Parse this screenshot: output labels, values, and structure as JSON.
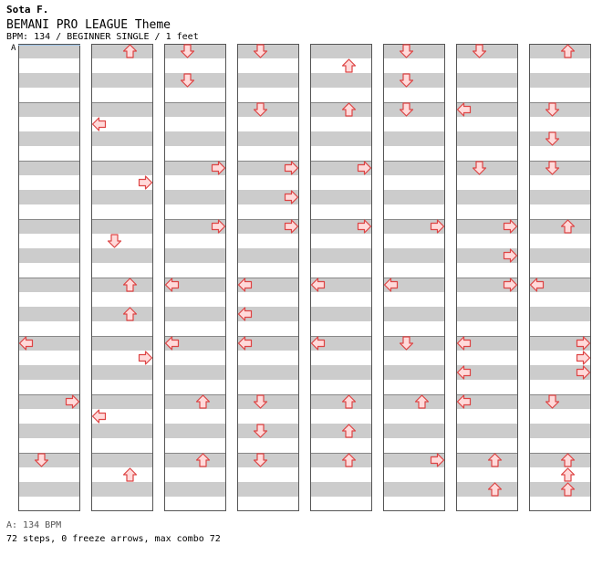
{
  "header": {
    "artist": "Sota F.",
    "title": "BEMANI PRO LEAGUE Theme",
    "info": "BPM: 134 / BEGINNER SINGLE / 1 feet"
  },
  "bpm_marker": "A",
  "footer": {
    "bpm_legend": "A: 134 BPM",
    "summary": "72 steps, 0 freeze arrows, max combo 72"
  },
  "colors": {
    "stripe": "#cccccc",
    "column_border": "#555555",
    "arrow_fill": "#ffdada",
    "arrow_stroke": "#dd4444"
  },
  "chart": {
    "columns": 8,
    "measures_per_column": 8,
    "beats_per_measure": 4,
    "lanes": [
      "left",
      "down",
      "up",
      "right"
    ],
    "notes": [
      {
        "col": 0,
        "measure": 5,
        "beat": 0,
        "lane": "left"
      },
      {
        "col": 0,
        "measure": 6,
        "beat": 0,
        "lane": "right"
      },
      {
        "col": 0,
        "measure": 7,
        "beat": 0,
        "lane": "down"
      },
      {
        "col": 1,
        "measure": 0,
        "beat": 0,
        "lane": "up"
      },
      {
        "col": 1,
        "measure": 1,
        "beat": 1,
        "lane": "left"
      },
      {
        "col": 1,
        "measure": 2,
        "beat": 1,
        "lane": "right"
      },
      {
        "col": 1,
        "measure": 3,
        "beat": 1,
        "lane": "down"
      },
      {
        "col": 1,
        "measure": 4,
        "beat": 0,
        "lane": "up"
      },
      {
        "col": 1,
        "measure": 4,
        "beat": 2,
        "lane": "up"
      },
      {
        "col": 1,
        "measure": 5,
        "beat": 1,
        "lane": "right"
      },
      {
        "col": 1,
        "measure": 6,
        "beat": 1,
        "lane": "left"
      },
      {
        "col": 1,
        "measure": 7,
        "beat": 1,
        "lane": "up"
      },
      {
        "col": 2,
        "measure": 0,
        "beat": 0,
        "lane": "down"
      },
      {
        "col": 2,
        "measure": 0,
        "beat": 2,
        "lane": "down"
      },
      {
        "col": 2,
        "measure": 2,
        "beat": 0,
        "lane": "right"
      },
      {
        "col": 2,
        "measure": 3,
        "beat": 0,
        "lane": "right"
      },
      {
        "col": 2,
        "measure": 4,
        "beat": 0,
        "lane": "left"
      },
      {
        "col": 2,
        "measure": 5,
        "beat": 0,
        "lane": "left"
      },
      {
        "col": 2,
        "measure": 6,
        "beat": 0,
        "lane": "up"
      },
      {
        "col": 2,
        "measure": 7,
        "beat": 0,
        "lane": "up"
      },
      {
        "col": 3,
        "measure": 0,
        "beat": 0,
        "lane": "down"
      },
      {
        "col": 3,
        "measure": 1,
        "beat": 0,
        "lane": "down"
      },
      {
        "col": 3,
        "measure": 2,
        "beat": 0,
        "lane": "right"
      },
      {
        "col": 3,
        "measure": 2,
        "beat": 2,
        "lane": "right"
      },
      {
        "col": 3,
        "measure": 3,
        "beat": 0,
        "lane": "right"
      },
      {
        "col": 3,
        "measure": 4,
        "beat": 0,
        "lane": "left"
      },
      {
        "col": 3,
        "measure": 4,
        "beat": 2,
        "lane": "left"
      },
      {
        "col": 3,
        "measure": 5,
        "beat": 0,
        "lane": "left"
      },
      {
        "col": 3,
        "measure": 6,
        "beat": 0,
        "lane": "down"
      },
      {
        "col": 3,
        "measure": 6,
        "beat": 2,
        "lane": "down"
      },
      {
        "col": 3,
        "measure": 7,
        "beat": 0,
        "lane": "down"
      },
      {
        "col": 4,
        "measure": 0,
        "beat": 1,
        "lane": "up"
      },
      {
        "col": 4,
        "measure": 1,
        "beat": 0,
        "lane": "up"
      },
      {
        "col": 4,
        "measure": 2,
        "beat": 0,
        "lane": "right"
      },
      {
        "col": 4,
        "measure": 3,
        "beat": 0,
        "lane": "right"
      },
      {
        "col": 4,
        "measure": 4,
        "beat": 0,
        "lane": "left"
      },
      {
        "col": 4,
        "measure": 5,
        "beat": 0,
        "lane": "left"
      },
      {
        "col": 4,
        "measure": 6,
        "beat": 0,
        "lane": "up"
      },
      {
        "col": 4,
        "measure": 6,
        "beat": 2,
        "lane": "up"
      },
      {
        "col": 4,
        "measure": 7,
        "beat": 0,
        "lane": "up"
      },
      {
        "col": 5,
        "measure": 0,
        "beat": 0,
        "lane": "down"
      },
      {
        "col": 5,
        "measure": 0,
        "beat": 2,
        "lane": "down"
      },
      {
        "col": 5,
        "measure": 1,
        "beat": 0,
        "lane": "down"
      },
      {
        "col": 5,
        "measure": 3,
        "beat": 0,
        "lane": "right"
      },
      {
        "col": 5,
        "measure": 4,
        "beat": 0,
        "lane": "left"
      },
      {
        "col": 5,
        "measure": 5,
        "beat": 0,
        "lane": "down"
      },
      {
        "col": 5,
        "measure": 6,
        "beat": 0,
        "lane": "up"
      },
      {
        "col": 5,
        "measure": 7,
        "beat": 0,
        "lane": "right"
      },
      {
        "col": 6,
        "measure": 0,
        "beat": 0,
        "lane": "down"
      },
      {
        "col": 6,
        "measure": 1,
        "beat": 0,
        "lane": "left"
      },
      {
        "col": 6,
        "measure": 2,
        "beat": 0,
        "lane": "down"
      },
      {
        "col": 6,
        "measure": 3,
        "beat": 0,
        "lane": "right"
      },
      {
        "col": 6,
        "measure": 3,
        "beat": 2,
        "lane": "right"
      },
      {
        "col": 6,
        "measure": 4,
        "beat": 0,
        "lane": "right"
      },
      {
        "col": 6,
        "measure": 5,
        "beat": 0,
        "lane": "left"
      },
      {
        "col": 6,
        "measure": 5,
        "beat": 2,
        "lane": "left"
      },
      {
        "col": 6,
        "measure": 6,
        "beat": 0,
        "lane": "left"
      },
      {
        "col": 6,
        "measure": 7,
        "beat": 0,
        "lane": "up"
      },
      {
        "col": 6,
        "measure": 7,
        "beat": 2,
        "lane": "up"
      },
      {
        "col": 7,
        "measure": 0,
        "beat": 0,
        "lane": "up"
      },
      {
        "col": 7,
        "measure": 1,
        "beat": 0,
        "lane": "down"
      },
      {
        "col": 7,
        "measure": 1,
        "beat": 2,
        "lane": "down"
      },
      {
        "col": 7,
        "measure": 2,
        "beat": 0,
        "lane": "down"
      },
      {
        "col": 7,
        "measure": 3,
        "beat": 0,
        "lane": "up"
      },
      {
        "col": 7,
        "measure": 4,
        "beat": 0,
        "lane": "left"
      },
      {
        "col": 7,
        "measure": 5,
        "beat": 0,
        "lane": "right"
      },
      {
        "col": 7,
        "measure": 5,
        "beat": 1,
        "lane": "right"
      },
      {
        "col": 7,
        "measure": 5,
        "beat": 2,
        "lane": "right"
      },
      {
        "col": 7,
        "measure": 6,
        "beat": 0,
        "lane": "down"
      },
      {
        "col": 7,
        "measure": 7,
        "beat": 0,
        "lane": "up"
      },
      {
        "col": 7,
        "measure": 7,
        "beat": 1,
        "lane": "up"
      },
      {
        "col": 7,
        "measure": 7,
        "beat": 2,
        "lane": "up"
      }
    ]
  }
}
